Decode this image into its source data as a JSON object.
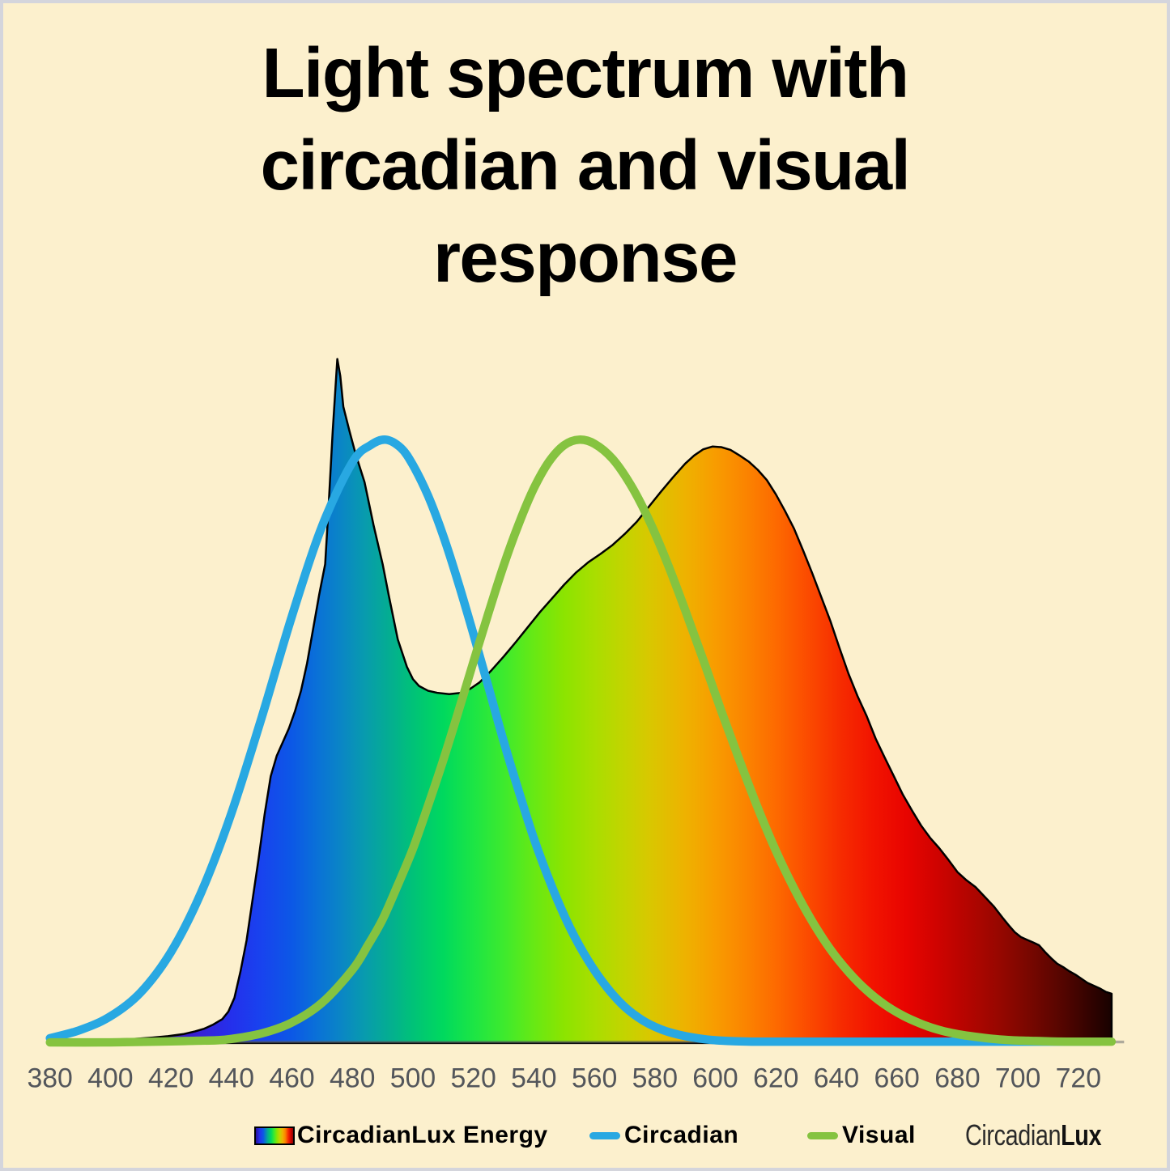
{
  "title": "Light spectrum with circadian and visual response",
  "colors": {
    "page_border": "#d4d5dc",
    "canvas_background": "#fcf0cd",
    "circadian_line": "#28a8e2",
    "visual_line": "#85c340",
    "axis_text": "#53565b",
    "axis_line": "rgba(95,99,105,0.5)",
    "outline": "#000000"
  },
  "legend": {
    "items": [
      {
        "label": "CircadianLux Energy",
        "type": "gradient-swatch"
      },
      {
        "label": "Circadian",
        "type": "line",
        "color": "#28a8e2"
      },
      {
        "label": "Visual",
        "type": "line",
        "color": "#85c340"
      }
    ]
  },
  "brand": {
    "light": "Circadian",
    "bold": "Lux"
  },
  "chart_data": {
    "type": "area",
    "x_range": [
      380,
      731
    ],
    "x_ticks": [
      380,
      400,
      420,
      440,
      460,
      480,
      500,
      520,
      540,
      560,
      580,
      600,
      620,
      640,
      660,
      680,
      700,
      720
    ],
    "y_range": [
      0,
      1
    ],
    "grid": false,
    "legend_position": "bottom",
    "series": [
      {
        "name": "CircadianLux Energy",
        "type": "area",
        "fill": "spectrum-gradient",
        "points": [
          [
            380,
            0.003
          ],
          [
            390,
            0.004
          ],
          [
            400,
            0.005
          ],
          [
            408,
            0.006
          ],
          [
            414,
            0.008
          ],
          [
            419,
            0.01
          ],
          [
            424,
            0.013
          ],
          [
            428,
            0.017
          ],
          [
            431,
            0.021
          ],
          [
            434,
            0.027
          ],
          [
            437,
            0.035
          ],
          [
            439,
            0.046
          ],
          [
            441,
            0.066
          ],
          [
            443,
            0.105
          ],
          [
            445,
            0.15
          ],
          [
            447,
            0.21
          ],
          [
            449,
            0.27
          ],
          [
            451,
            0.335
          ],
          [
            453,
            0.39
          ],
          [
            455,
            0.42
          ],
          [
            457,
            0.44
          ],
          [
            459,
            0.46
          ],
          [
            461,
            0.485
          ],
          [
            463,
            0.515
          ],
          [
            465,
            0.555
          ],
          [
            467,
            0.605
          ],
          [
            469,
            0.655
          ],
          [
            471,
            0.7
          ],
          [
            472,
            0.775
          ],
          [
            473.5,
            0.895
          ],
          [
            475,
            1.0
          ],
          [
            476,
            0.975
          ],
          [
            477,
            0.93
          ],
          [
            479,
            0.895
          ],
          [
            481,
            0.862
          ],
          [
            484,
            0.82
          ],
          [
            487,
            0.757
          ],
          [
            490,
            0.7
          ],
          [
            492,
            0.655
          ],
          [
            495,
            0.59
          ],
          [
            498,
            0.55
          ],
          [
            500,
            0.532
          ],
          [
            502,
            0.522
          ],
          [
            505,
            0.515
          ],
          [
            508,
            0.512
          ],
          [
            512,
            0.51
          ],
          [
            516,
            0.512
          ],
          [
            519,
            0.518
          ],
          [
            522,
            0.527
          ],
          [
            526,
            0.545
          ],
          [
            530,
            0.565
          ],
          [
            534,
            0.586
          ],
          [
            538,
            0.608
          ],
          [
            542,
            0.63
          ],
          [
            546,
            0.65
          ],
          [
            550,
            0.67
          ],
          [
            554,
            0.688
          ],
          [
            558,
            0.703
          ],
          [
            562,
            0.715
          ],
          [
            566,
            0.728
          ],
          [
            570,
            0.744
          ],
          [
            574,
            0.762
          ],
          [
            578,
            0.784
          ],
          [
            582,
            0.806
          ],
          [
            586,
            0.827
          ],
          [
            590,
            0.847
          ],
          [
            593,
            0.859
          ],
          [
            596,
            0.868
          ],
          [
            599,
            0.872
          ],
          [
            602,
            0.871
          ],
          [
            605,
            0.867
          ],
          [
            608,
            0.859
          ],
          [
            611,
            0.85
          ],
          [
            614,
            0.838
          ],
          [
            617,
            0.823
          ],
          [
            620,
            0.802
          ],
          [
            623,
            0.778
          ],
          [
            626,
            0.752
          ],
          [
            629,
            0.72
          ],
          [
            632,
            0.687
          ],
          [
            635,
            0.652
          ],
          [
            638,
            0.617
          ],
          [
            641,
            0.578
          ],
          [
            644,
            0.54
          ],
          [
            647,
            0.507
          ],
          [
            650,
            0.478
          ],
          [
            653,
            0.445
          ],
          [
            656,
            0.417
          ],
          [
            659,
            0.39
          ],
          [
            662,
            0.363
          ],
          [
            665,
            0.34
          ],
          [
            668,
            0.318
          ],
          [
            671,
            0.3
          ],
          [
            674,
            0.285
          ],
          [
            677,
            0.268
          ],
          [
            680,
            0.25
          ],
          [
            683,
            0.238
          ],
          [
            686,
            0.228
          ],
          [
            689,
            0.214
          ],
          [
            692,
            0.2
          ],
          [
            695,
            0.183
          ],
          [
            697,
            0.172
          ],
          [
            699,
            0.162
          ],
          [
            701,
            0.155
          ],
          [
            703,
            0.151
          ],
          [
            705,
            0.147
          ],
          [
            707,
            0.143
          ],
          [
            709,
            0.133
          ],
          [
            711,
            0.124
          ],
          [
            713,
            0.116
          ],
          [
            715,
            0.111
          ],
          [
            717,
            0.105
          ],
          [
            719,
            0.1
          ],
          [
            721,
            0.094
          ],
          [
            723,
            0.088
          ],
          [
            725,
            0.084
          ],
          [
            727,
            0.08
          ],
          [
            729,
            0.075
          ],
          [
            731,
            0.072
          ]
        ]
      },
      {
        "name": "Circadian",
        "type": "line",
        "color": "#28a8e2",
        "points": [
          [
            380,
            0.007
          ],
          [
            390,
            0.019
          ],
          [
            400,
            0.039
          ],
          [
            410,
            0.074
          ],
          [
            420,
            0.133
          ],
          [
            430,
            0.22
          ],
          [
            440,
            0.336
          ],
          [
            450,
            0.476
          ],
          [
            460,
            0.624
          ],
          [
            470,
            0.756
          ],
          [
            480,
            0.849
          ],
          [
            486,
            0.874
          ],
          [
            491,
            0.882
          ],
          [
            496,
            0.87
          ],
          [
            500,
            0.845
          ],
          [
            505,
            0.8
          ],
          [
            510,
            0.742
          ],
          [
            515,
            0.673
          ],
          [
            520,
            0.598
          ],
          [
            525,
            0.52
          ],
          [
            530,
            0.441
          ],
          [
            535,
            0.368
          ],
          [
            540,
            0.299
          ],
          [
            546,
            0.228
          ],
          [
            552,
            0.168
          ],
          [
            558,
            0.12
          ],
          [
            564,
            0.082
          ],
          [
            570,
            0.053
          ],
          [
            576,
            0.033
          ],
          [
            582,
            0.02
          ],
          [
            588,
            0.012
          ],
          [
            594,
            0.007
          ],
          [
            600,
            0.004
          ],
          [
            612,
            0.002
          ],
          [
            640,
            0.002
          ],
          [
            680,
            0.002
          ],
          [
            727,
            0.002
          ]
        ]
      },
      {
        "name": "Visual",
        "type": "line",
        "color": "#85c340",
        "points": [
          [
            380,
            0.001
          ],
          [
            400,
            0.001
          ],
          [
            415,
            0.002
          ],
          [
            425,
            0.003
          ],
          [
            435,
            0.004
          ],
          [
            440,
            0.006
          ],
          [
            450,
            0.014
          ],
          [
            460,
            0.03
          ],
          [
            470,
            0.059
          ],
          [
            480,
            0.107
          ],
          [
            485,
            0.142
          ],
          [
            490,
            0.181
          ],
          [
            495,
            0.231
          ],
          [
            500,
            0.284
          ],
          [
            505,
            0.347
          ],
          [
            510,
            0.413
          ],
          [
            515,
            0.484
          ],
          [
            520,
            0.557
          ],
          [
            525,
            0.629
          ],
          [
            530,
            0.698
          ],
          [
            535,
            0.759
          ],
          [
            540,
            0.811
          ],
          [
            545,
            0.85
          ],
          [
            550,
            0.874
          ],
          [
            555,
            0.882
          ],
          [
            560,
            0.876
          ],
          [
            566,
            0.854
          ],
          [
            572,
            0.816
          ],
          [
            578,
            0.765
          ],
          [
            584,
            0.703
          ],
          [
            590,
            0.633
          ],
          [
            596,
            0.56
          ],
          [
            602,
            0.485
          ],
          [
            608,
            0.413
          ],
          [
            614,
            0.344
          ],
          [
            620,
            0.281
          ],
          [
            626,
            0.226
          ],
          [
            632,
            0.178
          ],
          [
            638,
            0.137
          ],
          [
            644,
            0.104
          ],
          [
            650,
            0.077
          ],
          [
            656,
            0.056
          ],
          [
            662,
            0.04
          ],
          [
            668,
            0.028
          ],
          [
            674,
            0.019
          ],
          [
            680,
            0.013
          ],
          [
            686,
            0.009
          ],
          [
            692,
            0.006
          ],
          [
            698,
            0.004
          ],
          [
            706,
            0.003
          ],
          [
            716,
            0.002
          ],
          [
            731,
            0.002
          ]
        ]
      }
    ],
    "gradient_stops": [
      [
        380,
        "#0d0020"
      ],
      [
        390,
        "#1b0040"
      ],
      [
        400,
        "#26005e"
      ],
      [
        410,
        "#300888"
      ],
      [
        420,
        "#3a14b8"
      ],
      [
        430,
        "#3721d8"
      ],
      [
        440,
        "#2430ec"
      ],
      [
        450,
        "#1843ee"
      ],
      [
        460,
        "#0c58e6"
      ],
      [
        468,
        "#0a70d8"
      ],
      [
        476,
        "#0a85c6"
      ],
      [
        484,
        "#089bae"
      ],
      [
        492,
        "#04ad92"
      ],
      [
        500,
        "#00c278"
      ],
      [
        510,
        "#00d95e"
      ],
      [
        520,
        "#1ce545"
      ],
      [
        530,
        "#3dea2e"
      ],
      [
        540,
        "#67e914"
      ],
      [
        550,
        "#8ce400"
      ],
      [
        560,
        "#a9de00"
      ],
      [
        570,
        "#c3d400"
      ],
      [
        578,
        "#d8c800"
      ],
      [
        590,
        "#eeb200"
      ],
      [
        600,
        "#f89c00"
      ],
      [
        610,
        "#fb8400"
      ],
      [
        620,
        "#fd6a00"
      ],
      [
        631,
        "#fb4a00"
      ],
      [
        642,
        "#f62a00"
      ],
      [
        652,
        "#f21400"
      ],
      [
        663,
        "#e80400"
      ],
      [
        673,
        "#d00300"
      ],
      [
        684,
        "#b20500"
      ],
      [
        694,
        "#960700"
      ],
      [
        705,
        "#740700"
      ],
      [
        716,
        "#500500"
      ],
      [
        726,
        "#2a0200"
      ],
      [
        733,
        "#100100"
      ]
    ]
  }
}
